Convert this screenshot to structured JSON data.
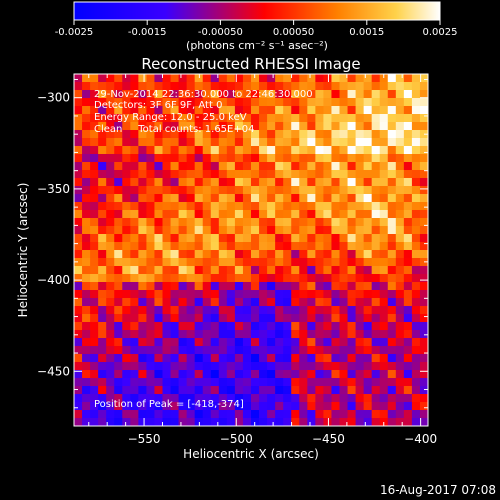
{
  "colorbar": {
    "min": -0.0025,
    "max": 0.0025,
    "ticks": [
      "-0.0025",
      "-0.0015",
      "-0.00050",
      "0.00050",
      "0.0015",
      "0.0025"
    ],
    "tick_values": [
      -0.0025,
      -0.0015,
      -0.0005,
      0.0005,
      0.0015,
      0.0025
    ],
    "unit_label": "(photons cm⁻² s⁻¹ asec⁻²)",
    "colormap": [
      "#0000ff",
      "#3a00ff",
      "#ff0000",
      "#ff8000",
      "#ffd24a",
      "#ffffff"
    ]
  },
  "chart_data": {
    "type": "heatmap",
    "title": "Reconstructed RHESSI Image",
    "xlabel": "Heliocentric X (arcsec)",
    "ylabel": "Heliocentric Y (arcsec)",
    "xlim": [
      -588,
      -396
    ],
    "ylim": [
      -480,
      -287
    ],
    "xticks": [
      -550,
      -500,
      -450,
      -400
    ],
    "yticks": [
      -300,
      -350,
      -400,
      -450
    ],
    "xtick_labels": [
      "−550",
      "−500",
      "−450",
      "−400"
    ],
    "ytick_labels": [
      "−300",
      "−350",
      "−400",
      "−450"
    ],
    "peak": [
      -418,
      -374
    ],
    "annotations": {
      "time_range": "29-Nov-2014 22:36:30.000 to 22:46:30.000",
      "detectors": "Detectors: 3F 6F 9F, Att 0",
      "energy": "Energy Range: 12.0 - 25.0 keV",
      "clean": "Clean     Total counts: 1.65E+04",
      "peak_text": "Position of Peak = [-418,-374]"
    }
  },
  "footer": {
    "date": "16-Aug-2017 07:08"
  }
}
